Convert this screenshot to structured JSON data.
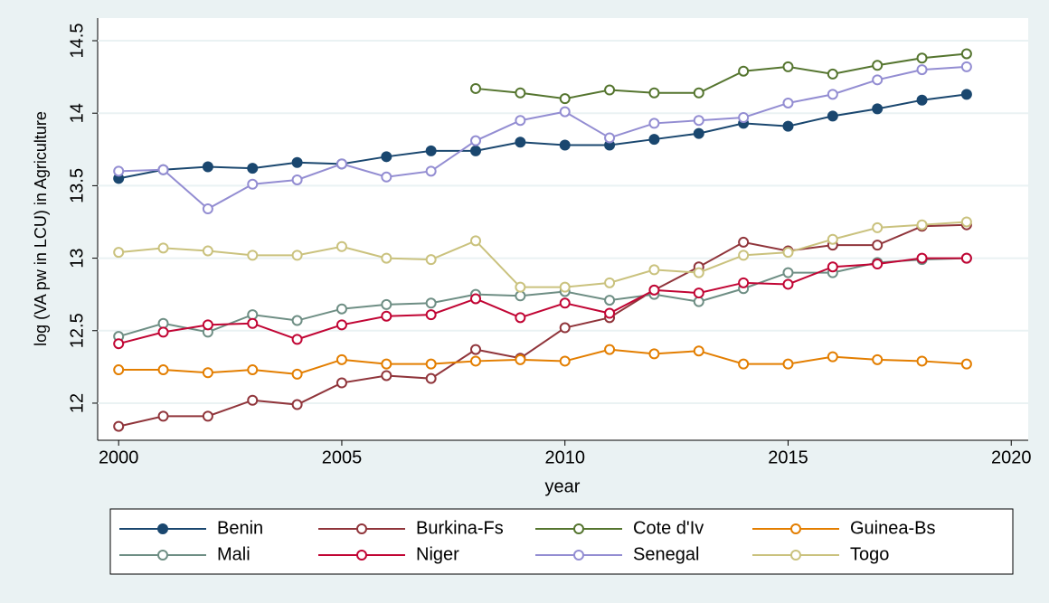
{
  "chart_data": {
    "type": "line",
    "x_label": "year",
    "y_label": "log (VA pw in LCU) in Agriculture",
    "x": [
      2000,
      2001,
      2002,
      2003,
      2004,
      2005,
      2006,
      2007,
      2008,
      2009,
      2010,
      2011,
      2012,
      2013,
      2014,
      2015,
      2016,
      2017,
      2018,
      2019
    ],
    "xlim": [
      1999.53,
      2020.38
    ],
    "xticks": [
      2000,
      2005,
      2010,
      2015,
      2020
    ],
    "ylim": [
      11.744,
      14.656
    ],
    "yticks": [
      12,
      12.5,
      13,
      13.5,
      14,
      14.5
    ],
    "grid": true,
    "legend": "bottom",
    "series": [
      {
        "name": "Benin",
        "color": "#1a476f",
        "marker": "filled",
        "values": [
          13.55,
          13.61,
          13.63,
          13.62,
          13.66,
          13.65,
          13.7,
          13.74,
          13.74,
          13.8,
          13.78,
          13.78,
          13.82,
          13.86,
          13.93,
          13.91,
          13.98,
          14.03,
          14.09,
          14.13
        ]
      },
      {
        "name": "Burkina-Fs",
        "color": "#90353b",
        "marker": "hollow",
        "values": [
          11.84,
          11.91,
          11.91,
          12.02,
          11.99,
          12.14,
          12.19,
          12.17,
          12.37,
          12.31,
          12.52,
          12.59,
          12.78,
          12.94,
          13.11,
          13.05,
          13.09,
          13.09,
          13.22,
          13.23
        ]
      },
      {
        "name": "Cote d'Iv",
        "color": "#55752f",
        "marker": "hollow",
        "values": [
          null,
          null,
          null,
          null,
          null,
          null,
          null,
          null,
          14.17,
          14.14,
          14.1,
          14.16,
          14.14,
          14.14,
          14.29,
          14.32,
          14.27,
          14.33,
          14.38,
          14.41
        ]
      },
      {
        "name": "Guinea-Bs",
        "color": "#e37e00",
        "marker": "hollow",
        "values": [
          12.23,
          12.23,
          12.21,
          12.23,
          12.2,
          12.3,
          12.27,
          12.27,
          12.29,
          12.3,
          12.29,
          12.37,
          12.34,
          12.36,
          12.27,
          12.27,
          12.32,
          12.3,
          12.29,
          12.27
        ]
      },
      {
        "name": "Mali",
        "color": "#6e8e84",
        "marker": "hollow",
        "values": [
          12.46,
          12.55,
          12.49,
          12.61,
          12.57,
          12.65,
          12.68,
          12.69,
          12.75,
          12.74,
          12.77,
          12.71,
          12.75,
          12.7,
          12.79,
          12.9,
          12.9,
          12.97,
          12.99,
          13.0
        ]
      },
      {
        "name": "Niger",
        "color": "#c10534",
        "marker": "hollow",
        "values": [
          12.41,
          12.49,
          12.54,
          12.55,
          12.44,
          12.54,
          12.6,
          12.61,
          12.72,
          12.59,
          12.69,
          12.62,
          12.78,
          12.76,
          12.83,
          12.82,
          12.94,
          12.96,
          13.0,
          13.0
        ]
      },
      {
        "name": "Senegal",
        "color": "#938dd2",
        "marker": "hollow",
        "values": [
          13.6,
          13.61,
          13.34,
          13.51,
          13.54,
          13.65,
          13.56,
          13.6,
          13.81,
          13.95,
          14.01,
          13.83,
          13.93,
          13.95,
          13.97,
          14.07,
          14.13,
          14.23,
          14.3,
          14.32
        ]
      },
      {
        "name": "Togo",
        "color": "#cac27e",
        "marker": "hollow",
        "values": [
          13.04,
          13.07,
          13.05,
          13.02,
          13.02,
          13.08,
          13.0,
          12.99,
          13.12,
          12.8,
          12.8,
          12.83,
          12.92,
          12.9,
          13.02,
          13.04,
          13.13,
          13.21,
          13.23,
          13.25
        ]
      }
    ]
  }
}
